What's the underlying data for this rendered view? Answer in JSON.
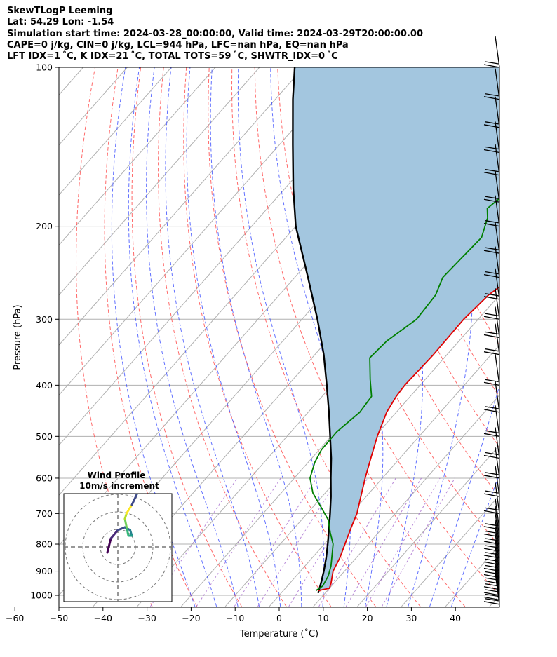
{
  "header": {
    "title": "SkewTLogP Leeming",
    "location": "Lat: 54.29   Lon: -1.54",
    "times": "Simulation start time: 2024-03-28_00:00:00, Valid time: 2024-03-29T20:00:00.00",
    "indices1": "CAPE=0 j/kg, CIN=0 j/kg, LCL=944 hPa, LFC=nan hPa, EQ=nan hPa",
    "indices2": "LFT IDX=1 ˚C, K IDX=21 ˚C, TOTAL TOTS=59 ˚C, SHWTR_IDX=0 ˚C"
  },
  "chart_data": {
    "type": "line",
    "title": "SkewTLogP Leeming",
    "xlabel": "Temperature (˚C)",
    "ylabel": "Pressure (hPa)",
    "x_axis": {
      "range": [
        -60,
        40
      ],
      "ticks": [
        -60,
        -50,
        -40,
        -30,
        -20,
        -10,
        0,
        10,
        20,
        30,
        40
      ],
      "scale": "linear-skewed"
    },
    "y_axis": {
      "range": [
        1050,
        100
      ],
      "ticks": [
        1000,
        900,
        800,
        700,
        600,
        500,
        400,
        300,
        200,
        100
      ],
      "scale": "log"
    },
    "grid": true,
    "series": [
      {
        "name": "Temperature",
        "color": "#e00000",
        "points": [
          [
            7.9,
            980
          ],
          [
            10.0,
            970
          ],
          [
            9.4,
            950
          ],
          [
            7.4,
            900
          ],
          [
            6.3,
            850
          ],
          [
            4.7,
            800
          ],
          [
            3.0,
            750
          ],
          [
            1.3,
            700
          ],
          [
            -1.2,
            650
          ],
          [
            -3.9,
            600
          ],
          [
            -6.6,
            550
          ],
          [
            -9.5,
            500
          ],
          [
            -12.2,
            450
          ],
          [
            -13.2,
            420
          ],
          [
            -13.5,
            400
          ],
          [
            -13.1,
            350
          ],
          [
            -13.3,
            300
          ],
          [
            -12.5,
            270
          ],
          [
            -10.6,
            250
          ],
          [
            -7.5,
            230
          ],
          [
            -3.1,
            210
          ],
          [
            0.7,
            195
          ],
          [
            3.6,
            180
          ],
          [
            6.6,
            160
          ],
          [
            8.5,
            140
          ],
          [
            11.3,
            130
          ],
          [
            14.5,
            115
          ],
          [
            17.0,
            100
          ]
        ]
      },
      {
        "name": "Dewpoint",
        "color": "#007f00",
        "points": [
          [
            7.4,
            980
          ],
          [
            8.0,
            960
          ],
          [
            7.3,
            920
          ],
          [
            5.9,
            880
          ],
          [
            4.0,
            840
          ],
          [
            2.0,
            800
          ],
          [
            -1.0,
            760
          ],
          [
            -3.9,
            720
          ],
          [
            -8.2,
            680
          ],
          [
            -12.8,
            640
          ],
          [
            -16.4,
            600
          ],
          [
            -18.5,
            560
          ],
          [
            -19.5,
            530
          ],
          [
            -19.6,
            490
          ],
          [
            -18.3,
            450
          ],
          [
            -18.8,
            420
          ],
          [
            -22.5,
            390
          ],
          [
            -26.9,
            355
          ],
          [
            -26.4,
            330
          ],
          [
            -24.0,
            300
          ],
          [
            -24.5,
            270
          ],
          [
            -26.4,
            250
          ],
          [
            -25.6,
            210
          ],
          [
            -28.1,
            193
          ],
          [
            -30.1,
            185
          ],
          [
            -28.0,
            165
          ],
          [
            -23.0,
            140
          ],
          [
            -18.0,
            120
          ],
          [
            -12.4,
            100
          ]
        ]
      },
      {
        "name": "Parcel",
        "color": "#000000",
        "points": [
          [
            8.4,
            990
          ],
          [
            6.9,
            944
          ],
          [
            5.3,
            900
          ],
          [
            3.2,
            850
          ],
          [
            0.8,
            800
          ],
          [
            -1.9,
            750
          ],
          [
            -4.8,
            700
          ],
          [
            -8.0,
            650
          ],
          [
            -11.7,
            600
          ],
          [
            -15.6,
            550
          ],
          [
            -20.2,
            500
          ],
          [
            -25.3,
            450
          ],
          [
            -31.2,
            400
          ],
          [
            -38.0,
            350
          ],
          [
            -46.5,
            300
          ],
          [
            -57.0,
            250
          ],
          [
            -70.0,
            200
          ],
          [
            -78.0,
            170
          ],
          [
            -87.0,
            140
          ],
          [
            -96.0,
            115
          ],
          [
            -102.0,
            100
          ]
        ]
      }
    ],
    "reference_lines": [
      "dry adiabats",
      "moist adiabats",
      "mixing ratio lines",
      "skewed isotherms"
    ],
    "wind_barbs": {
      "levels_hpa": [
        1040,
        1020,
        1000,
        975,
        950,
        925,
        900,
        875,
        850,
        825,
        800,
        775,
        750,
        700,
        650,
        600,
        550,
        500,
        450,
        400,
        350,
        325,
        300,
        275,
        250,
        225,
        200,
        180,
        160,
        145,
        130,
        115,
        100
      ]
    },
    "inset": {
      "title": "Wind Profile",
      "subtitle": "10m/s increment",
      "type": "hodograph",
      "rings_mps": [
        10,
        20,
        30
      ],
      "trace": [
        [
          -6,
          -2
        ],
        [
          -4,
          3
        ],
        [
          0,
          6
        ],
        [
          4,
          7
        ],
        [
          7,
          6
        ],
        [
          8,
          4
        ],
        [
          6,
          4
        ],
        [
          5,
          7
        ],
        [
          4,
          10
        ],
        [
          5,
          12
        ],
        [
          8,
          15
        ],
        [
          11,
          19
        ],
        [
          13,
          22
        ]
      ]
    }
  }
}
